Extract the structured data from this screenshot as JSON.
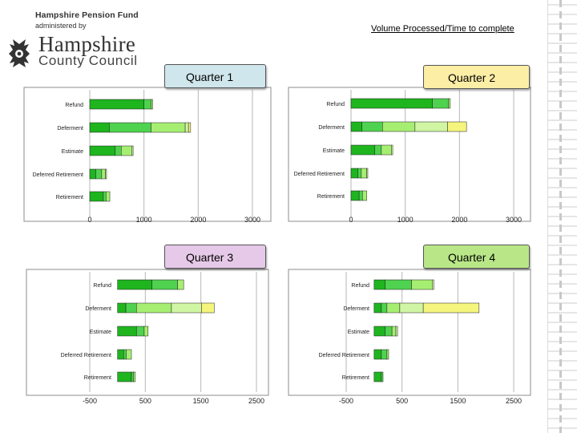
{
  "logo": {
    "line1": "Hampshire Pension Fund",
    "line2": "administered by",
    "name1": "Hampshire",
    "name2": "County Council"
  },
  "page": {
    "title": "Volume Processed/Time to complete"
  },
  "colors": [
    "#1eb51e",
    "#4fd24f",
    "#a6ee72",
    "#d0f5a3",
    "#f5f57e"
  ],
  "chart_data": [
    {
      "type": "bar",
      "stacked": true,
      "orientation": "horizontal",
      "title": "Quarter 1",
      "title_color": "#cfe6ec",
      "categories": [
        "Refund",
        "Deferment",
        "Estimate",
        "Deferred Retirement",
        "Retirement"
      ],
      "xticks": [
        "0",
        "1000",
        "2000",
        "3000"
      ],
      "xlim": [
        0,
        3000
      ],
      "grid": true,
      "segments": [
        [
          1000,
          130,
          30
        ],
        [
          360,
          770,
          630,
          60,
          40
        ],
        [
          470,
          110,
          200,
          20
        ],
        [
          110,
          110,
          70,
          20
        ],
        [
          250,
          50,
          70
        ]
      ]
    },
    {
      "type": "bar",
      "stacked": true,
      "orientation": "horizontal",
      "title": "Quarter 2",
      "title_color": "#fdeea6",
      "categories": [
        "Refund",
        "Deferment",
        "Estimate",
        "Deferred Retirement",
        "Retirement"
      ],
      "xticks": [
        "0",
        "1000",
        "2000",
        "3000"
      ],
      "xlim": [
        0,
        3000
      ],
      "grid": true,
      "segments": [
        [
          1500,
          300,
          30
        ],
        [
          200,
          380,
          600,
          600,
          350
        ],
        [
          440,
          120,
          190,
          20
        ],
        [
          130,
          60,
          100,
          20
        ],
        [
          150,
          60,
          80
        ]
      ]
    },
    {
      "type": "bar",
      "stacked": true,
      "orientation": "horizontal",
      "title": "Quarter 3",
      "title_color": "#e6c9e8",
      "categories": [
        "Refund",
        "Deferment",
        "Estimate",
        "Deferred Retirement",
        "Retirement"
      ],
      "xticks": [
        "-500",
        "500",
        "1500",
        "2500"
      ],
      "xlim": [
        -500,
        2500
      ],
      "grid": true,
      "segments": [
        [
          620,
          460,
          110
        ],
        [
          150,
          190,
          630,
          540,
          230
        ],
        [
          340,
          140,
          70
        ],
        [
          110,
          50,
          90
        ],
        [
          250,
          40,
          30
        ]
      ]
    },
    {
      "type": "bar",
      "stacked": true,
      "orientation": "horizontal",
      "title": "Quarter 4",
      "title_color": "#b9e787",
      "categories": [
        "Refund",
        "Deferment",
        "Estimate",
        "Deferred Retirement",
        "Retirement"
      ],
      "xticks": [
        "-500",
        "500",
        "1500",
        "2500"
      ],
      "xlim": [
        -500,
        2500
      ],
      "grid": true,
      "segments": [
        [
          200,
          470,
          370,
          30
        ],
        [
          130,
          100,
          230,
          420,
          1000
        ],
        [
          200,
          120,
          70,
          30
        ],
        [
          130,
          100,
          30
        ],
        [
          130,
          30
        ]
      ]
    }
  ]
}
